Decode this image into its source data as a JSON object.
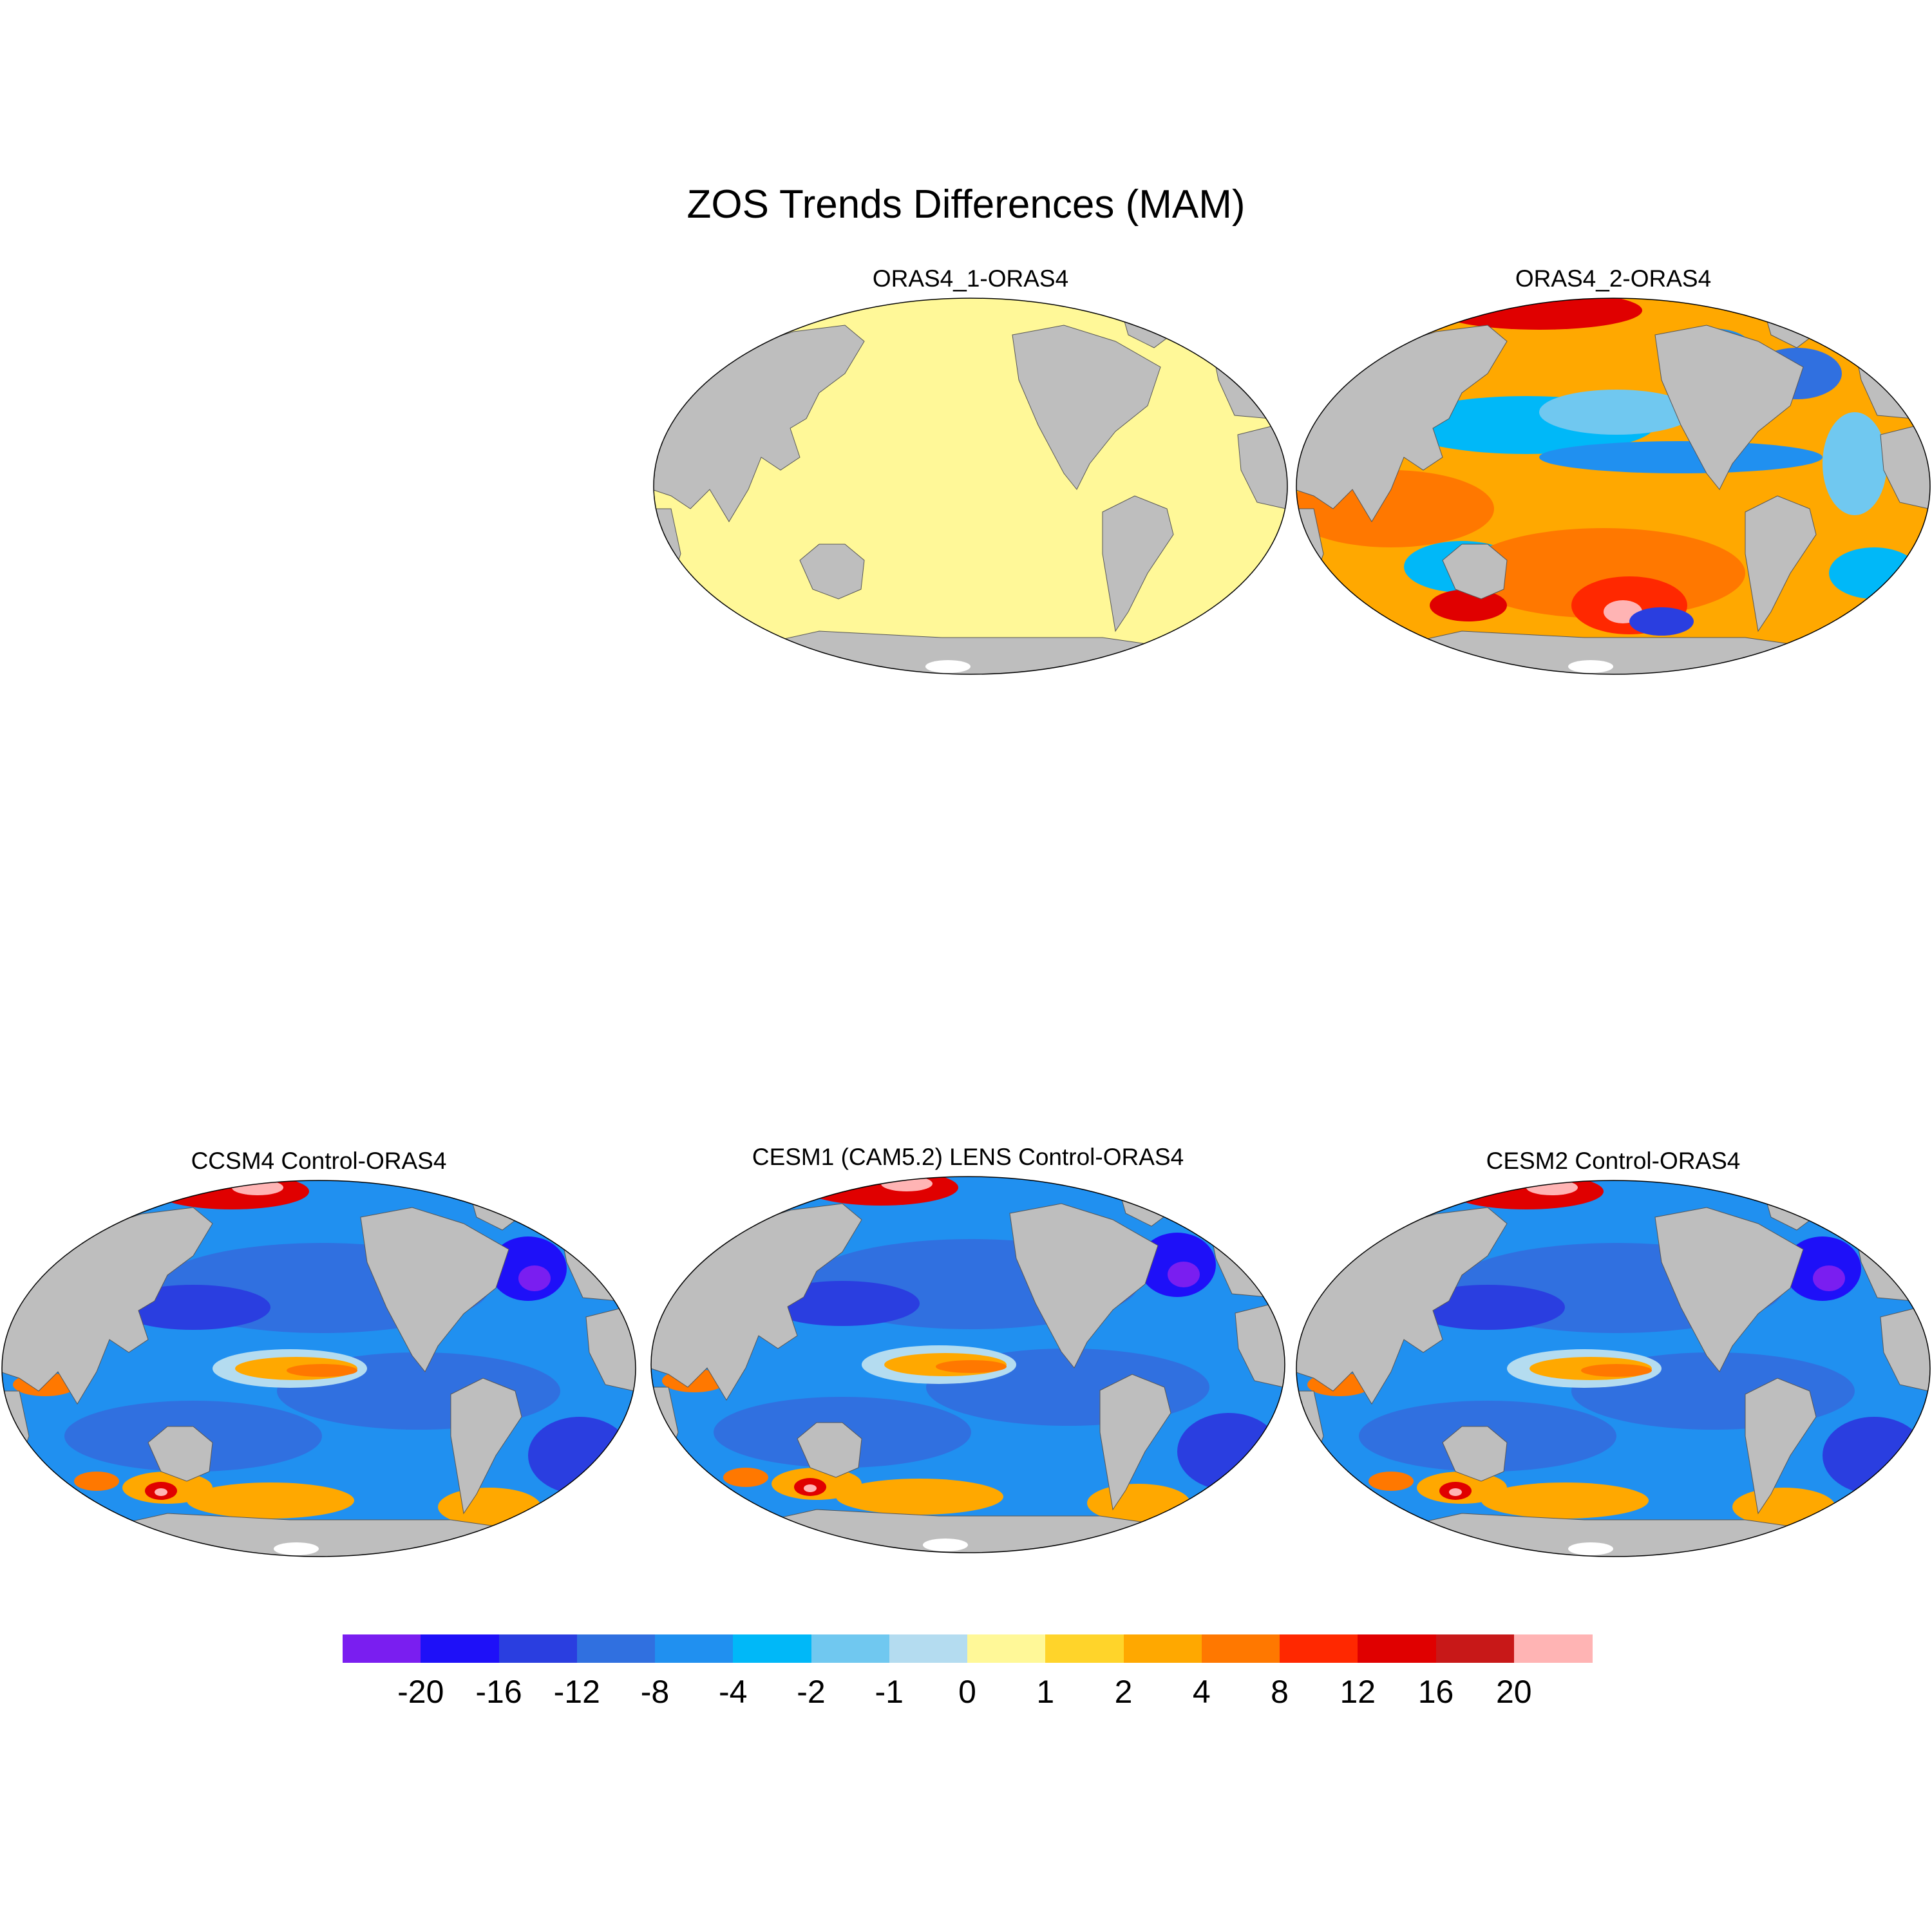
{
  "title": "ZOS Trends Differences (MAM)",
  "panels": [
    {
      "title": "ORAS4_1-ORAS4",
      "pattern": "uniform"
    },
    {
      "title": "ORAS4_2-ORAS4",
      "pattern": "warm"
    },
    {
      "title": "CCSM4 Control-ORAS4",
      "pattern": "cool"
    },
    {
      "title": "CESM1 (CAM5.2) LENS Control-ORAS4",
      "pattern": "cool"
    },
    {
      "title": "CESM2 Control-ORAS4",
      "pattern": "cool"
    }
  ],
  "colorbar": {
    "levels": [
      "-20",
      "-16",
      "-12",
      "-8",
      "-4",
      "-2",
      "-1",
      "0",
      "1",
      "2",
      "4",
      "8",
      "12",
      "16",
      "20"
    ],
    "colors": [
      "#7a1ef0",
      "#1e10f8",
      "#2a3ee0",
      "#3070e0",
      "#2090f0",
      "#00b8f8",
      "#70c8f0",
      "#b4dcf0",
      "#fff898",
      "#ffd42a",
      "#ffa800",
      "#ff7800",
      "#ff2800",
      "#e00000",
      "#c81818",
      "#ffb4b4"
    ]
  },
  "map": {
    "ocean_neutral": "#fff898",
    "land": "#bebebe",
    "ice": "#ffffff"
  }
}
